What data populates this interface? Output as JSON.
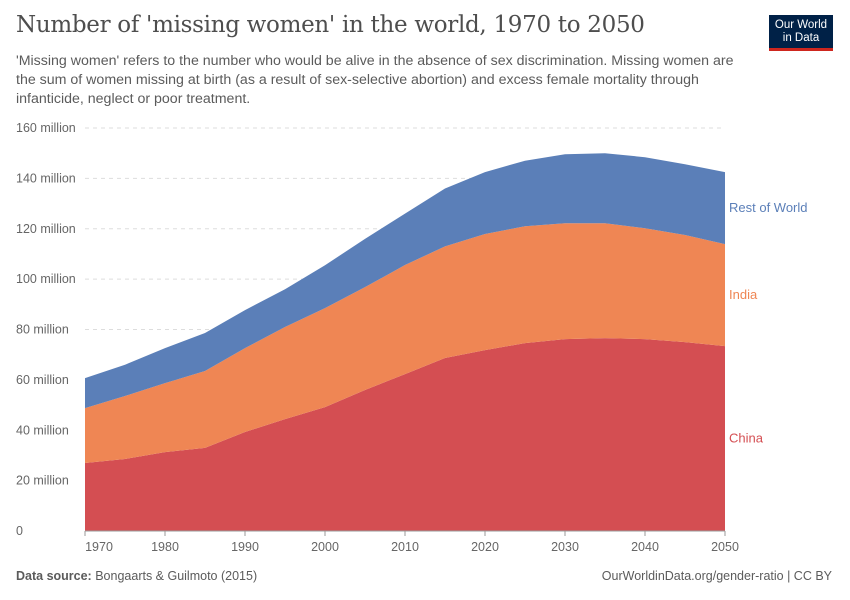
{
  "title": "Number of 'missing women' in the world, 1970 to 2050",
  "subtitle": "'Missing women' refers to the number who would be alive in the absence of sex discrimination. Missing women are the sum of women missing at birth (as a result of sex-selective abortion) and excess female mortality through infanticide, neglect or poor treatment.",
  "logo": {
    "line1": "Our World",
    "line2": "in Data"
  },
  "footer": {
    "source_label": "Data source:",
    "source": "Bongaarts & Guilmoto (2015)",
    "url_license": "OurWorldinData.org/gender-ratio | CC BY"
  },
  "chart_data": {
    "type": "area",
    "stacked": true,
    "x": [
      1970,
      1975,
      1980,
      1985,
      1990,
      1995,
      2000,
      2005,
      2010,
      2015,
      2020,
      2025,
      2030,
      2035,
      2040,
      2045,
      2050
    ],
    "series": [
      {
        "name": "China",
        "color": "#d44e52",
        "values": [
          27,
          28.6,
          31.3,
          33,
          39.3,
          44.4,
          49.2,
          56,
          62.3,
          68.7,
          71.8,
          74.6,
          76.2,
          76.6,
          76.2,
          75,
          73.4
        ]
      },
      {
        "name": "India",
        "color": "#ef8654",
        "values": [
          21.8,
          25,
          27.4,
          30.5,
          33.3,
          36.6,
          39.3,
          40.8,
          43.3,
          44.3,
          46.1,
          46.4,
          46,
          45.6,
          44,
          42.5,
          40.5
        ]
      },
      {
        "name": "Rest of World",
        "color": "#5b7fb8",
        "values": [
          11.9,
          12.4,
          13.9,
          15.1,
          15.1,
          15,
          17,
          19.2,
          20.4,
          23,
          24.6,
          26,
          27.4,
          27.8,
          28.2,
          28.1,
          28.6
        ]
      }
    ],
    "y_ticks": [
      "0",
      "20 million",
      "40 million",
      "60 million",
      "80 million",
      "100 million",
      "120 million",
      "140 million",
      "160 million"
    ],
    "y_tick_values": [
      0,
      20,
      40,
      60,
      80,
      100,
      120,
      140,
      160
    ],
    "x_ticks": [
      "1970",
      "1980",
      "1990",
      "2000",
      "2010",
      "2020",
      "2030",
      "2040",
      "2050"
    ],
    "x_tick_values": [
      1970,
      1980,
      1990,
      2000,
      2010,
      2020,
      2030,
      2040,
      2050
    ],
    "ylim": [
      0,
      160
    ],
    "xlim": [
      1970,
      2050
    ],
    "grid": "horizontal dashed",
    "legend": "right, inline labels"
  }
}
